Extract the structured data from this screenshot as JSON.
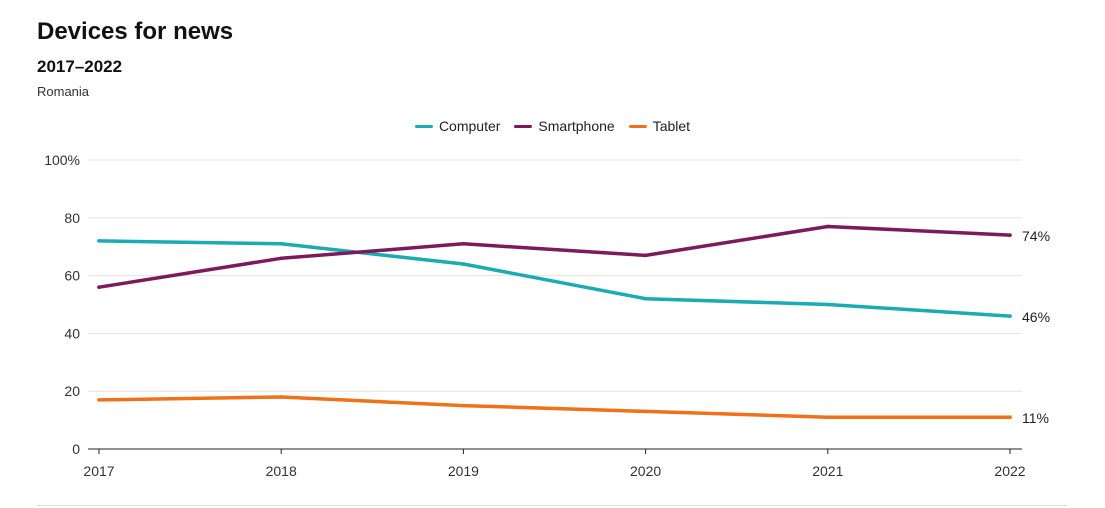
{
  "header": {
    "title": "Devices for news",
    "subtitle": "2017–2022",
    "region": "Romania"
  },
  "colors": {
    "computer": "#1aabb3",
    "smartphone": "#7d1a5c",
    "tablet": "#ef7118",
    "grid": "#e3e3e3",
    "axis": "#222222"
  },
  "chart_data": {
    "type": "line",
    "title": "Devices for news",
    "subtitle": "2017–2022",
    "x": [
      2017,
      2018,
      2019,
      2020,
      2021,
      2022
    ],
    "x_tick_labels": [
      "2017",
      "2018",
      "2019",
      "2020",
      "2021",
      "2022"
    ],
    "ylim": [
      0,
      100
    ],
    "y_ticks": [
      0,
      20,
      40,
      60,
      80,
      100
    ],
    "y_tick_labels": [
      "0",
      "20",
      "40",
      "60",
      "80",
      "100%"
    ],
    "grid": true,
    "legend_position": "top-center",
    "series": [
      {
        "name": "Computer",
        "color": "#1aabb3",
        "values": [
          72,
          71,
          64,
          52,
          50,
          46
        ],
        "end_label": "46%"
      },
      {
        "name": "Smartphone",
        "color": "#7d1a5c",
        "values": [
          56,
          66,
          71,
          67,
          77,
          74
        ],
        "end_label": "74%"
      },
      {
        "name": "Tablet",
        "color": "#ef7118",
        "values": [
          17,
          18,
          15,
          13,
          11,
          11
        ],
        "end_label": "11%"
      }
    ]
  }
}
